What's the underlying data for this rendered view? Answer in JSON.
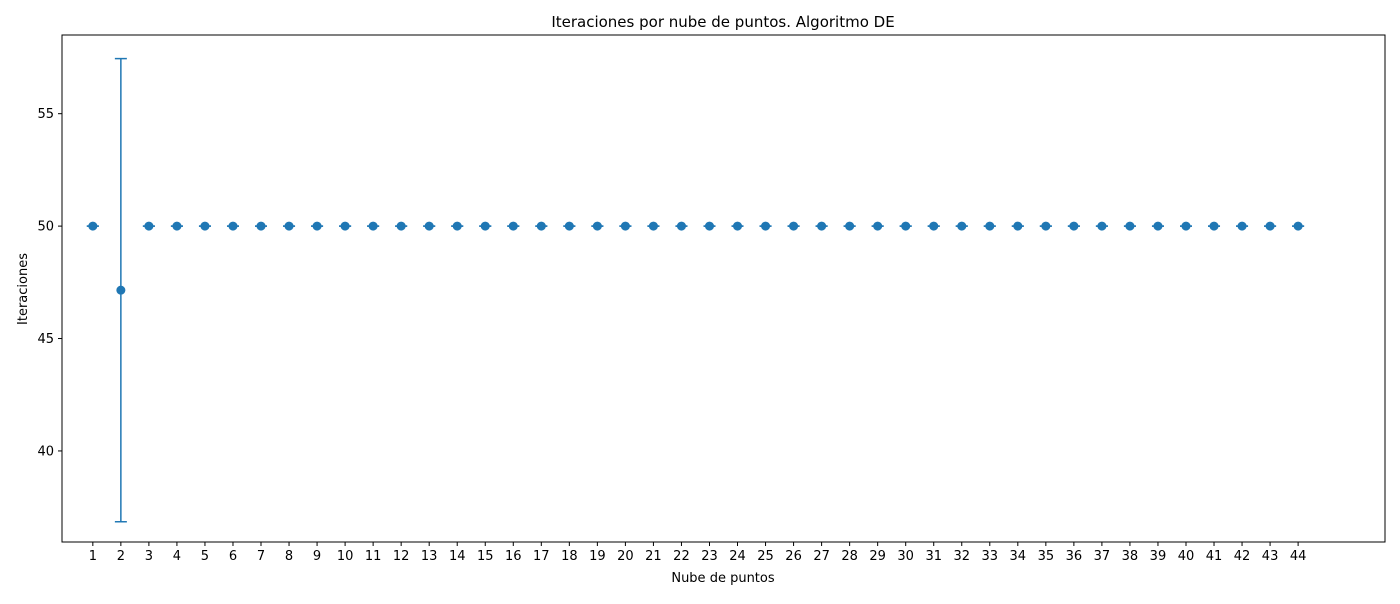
{
  "chart_data": {
    "type": "scatter",
    "title": "Iteraciones por nube de puntos. Algoritmo DE",
    "xlabel": "Nube de puntos",
    "ylabel": "Iteraciones",
    "xlim": [
      -1.1,
      46.1
    ],
    "ylim": [
      35.95,
      58.5
    ],
    "yticks": [
      40,
      45,
      50,
      55
    ],
    "grid": false,
    "series": [
      {
        "marker_color": "#1f77b4",
        "x": [
          "1",
          "2",
          "3",
          "4",
          "5",
          "6",
          "7",
          "8",
          "9",
          "10",
          "11",
          "12",
          "13",
          "14",
          "15",
          "16",
          "17",
          "18",
          "19",
          "20",
          "21",
          "22",
          "23",
          "24",
          "25",
          "26",
          "27",
          "28",
          "29",
          "30",
          "31",
          "32",
          "33",
          "34",
          "35",
          "36",
          "37",
          "38",
          "39",
          "40",
          "41",
          "42",
          "43",
          "44"
        ],
        "y": [
          50,
          47.15,
          50,
          50,
          50,
          50,
          50,
          50,
          50,
          50,
          50,
          50,
          50,
          50,
          50,
          50,
          50,
          50,
          50,
          50,
          50,
          50,
          50,
          50,
          50,
          50,
          50,
          50,
          50,
          50,
          50,
          50,
          50,
          50,
          50,
          50,
          50,
          50,
          50,
          50,
          50,
          50,
          50,
          50
        ],
        "yerr": [
          0,
          10.3,
          0,
          0,
          0,
          0,
          0,
          0,
          0,
          0,
          0,
          0,
          0,
          0,
          0,
          0,
          0,
          0,
          0,
          0,
          0,
          0,
          0,
          0,
          0,
          0,
          0,
          0,
          0,
          0,
          0,
          0,
          0,
          0,
          0,
          0,
          0,
          0,
          0,
          0,
          0,
          0,
          0,
          0
        ]
      }
    ]
  }
}
